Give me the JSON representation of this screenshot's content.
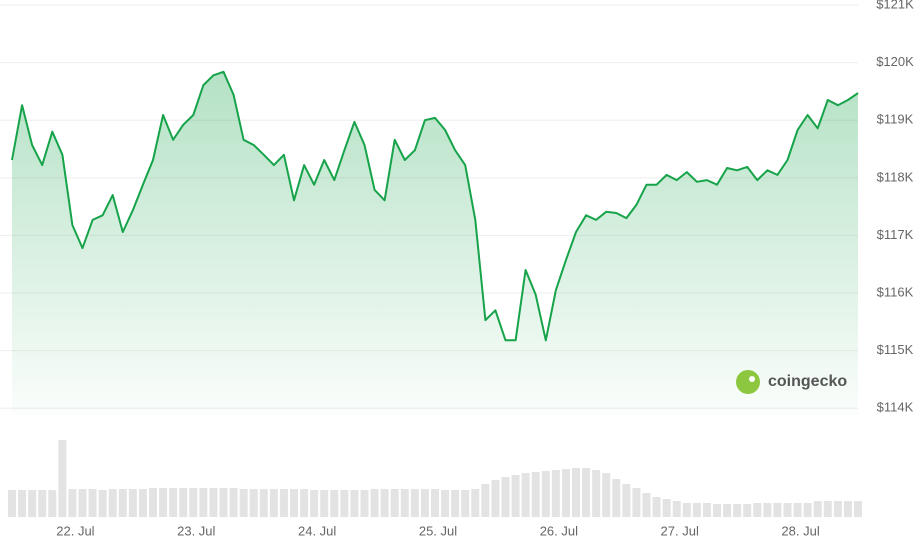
{
  "chart_data": {
    "type": "line",
    "color": "#16a34a",
    "volume_color": "#e3e3e3",
    "watermark": "coingecko",
    "ylim": [
      113900,
      121000
    ],
    "yticks": [
      {
        "value": 114000,
        "label": "$114K"
      },
      {
        "value": 115000,
        "label": "$115K"
      },
      {
        "value": 116000,
        "label": "$116K"
      },
      {
        "value": 117000,
        "label": "$117K"
      },
      {
        "value": 118000,
        "label": "$118K"
      },
      {
        "value": 119000,
        "label": "$119K"
      },
      {
        "value": 120000,
        "label": "$120K"
      },
      {
        "value": 121000,
        "label": "$121K"
      }
    ],
    "grid": true,
    "categories": [
      null,
      null,
      null,
      null,
      null,
      null,
      "22. Jul",
      null,
      null,
      null,
      null,
      null,
      null,
      null,
      null,
      null,
      null,
      null,
      "23. Jul",
      null,
      null,
      null,
      null,
      null,
      null,
      null,
      null,
      null,
      null,
      null,
      "24. Jul",
      null,
      null,
      null,
      null,
      null,
      null,
      null,
      null,
      null,
      null,
      null,
      "25. Jul",
      null,
      null,
      null,
      null,
      null,
      null,
      null,
      null,
      null,
      null,
      null,
      "26. Jul",
      null,
      null,
      null,
      null,
      null,
      null,
      null,
      null,
      null,
      null,
      null,
      "27. Jul",
      null,
      null,
      null,
      null,
      null,
      null,
      null,
      null,
      null,
      null,
      null,
      "28. Jul",
      null,
      null,
      null,
      null,
      null,
      null
    ],
    "values": [
      118310,
      119260,
      118570,
      118220,
      118800,
      118400,
      117180,
      116780,
      117270,
      117350,
      117700,
      117060,
      117440,
      117880,
      118310,
      119090,
      118660,
      118920,
      119090,
      119610,
      119780,
      119840,
      119440,
      118660,
      118570,
      118400,
      118220,
      118400,
      117610,
      118220,
      117880,
      118310,
      117960,
      118480,
      118970,
      118570,
      117790,
      117610,
      118660,
      118310,
      118480,
      119000,
      119040,
      118830,
      118480,
      118220,
      117270,
      115530,
      115700,
      115180,
      115180,
      116400,
      115970,
      115180,
      116050,
      116570,
      117060,
      117350,
      117270,
      117410,
      117390,
      117300,
      117530,
      117880,
      117880,
      118050,
      117960,
      118100,
      117930,
      117960,
      117880,
      118170,
      118130,
      118190,
      117960,
      118130,
      118050,
      118310,
      118830,
      119090,
      118860,
      119350,
      119260,
      119350,
      119470
    ],
    "volumes": [
      27,
      27,
      27,
      27,
      27,
      77,
      28,
      28,
      28,
      27,
      28,
      28,
      28,
      28,
      29,
      29,
      29,
      29,
      29,
      29,
      29,
      29,
      29,
      28,
      28,
      28,
      28,
      28,
      28,
      28,
      27,
      27,
      27,
      27,
      27,
      27,
      28,
      28,
      28,
      28,
      28,
      28,
      28,
      27,
      27,
      27,
      28,
      33,
      37,
      40,
      42,
      44,
      45,
      46,
      47,
      48,
      49,
      49,
      47,
      44,
      38,
      33,
      29,
      24,
      20,
      18,
      16,
      14,
      14,
      14,
      13,
      13,
      13,
      13,
      14,
      14,
      14,
      14,
      14,
      14,
      16,
      16,
      16,
      16,
      16
    ]
  }
}
